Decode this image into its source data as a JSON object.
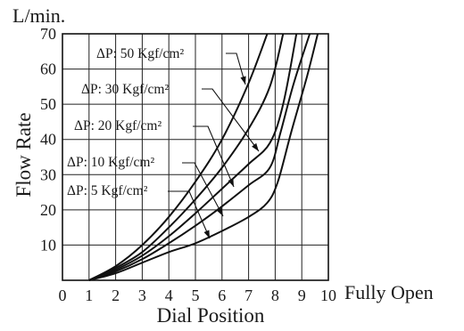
{
  "chart_data": {
    "type": "line",
    "y_unit": "L/min.",
    "ylabel": "Flow Rate",
    "xlabel": "Dial Position",
    "x_end_label": "Fully Open",
    "xlim": [
      0,
      10
    ],
    "ylim": [
      0,
      70
    ],
    "x_ticks": [
      "0",
      "1",
      "2",
      "3",
      "4",
      "5",
      "6",
      "7",
      "8",
      "9",
      "10"
    ],
    "y_ticks": [
      "10",
      "20",
      "30",
      "40",
      "50",
      "60",
      "70"
    ],
    "grid": true,
    "series": [
      {
        "name": "ΔP: 50 Kgf/cm²",
        "points": [
          [
            1,
            0
          ],
          [
            2,
            4
          ],
          [
            3,
            10
          ],
          [
            4,
            18
          ],
          [
            5,
            28
          ],
          [
            6,
            40
          ],
          [
            7,
            56
          ],
          [
            7.7,
            70
          ]
        ]
      },
      {
        "name": "ΔP: 30 Kgf/cm²",
        "points": [
          [
            1,
            0
          ],
          [
            2,
            3.5
          ],
          [
            3,
            8
          ],
          [
            4,
            15
          ],
          [
            5,
            23
          ],
          [
            6,
            32
          ],
          [
            7,
            43
          ],
          [
            7.8,
            55
          ],
          [
            8.3,
            70
          ]
        ]
      },
      {
        "name": "ΔP: 20 Kgf/cm²",
        "points": [
          [
            1,
            0
          ],
          [
            2,
            3
          ],
          [
            3,
            7
          ],
          [
            4,
            12.5
          ],
          [
            5,
            19
          ],
          [
            6,
            26
          ],
          [
            7,
            33
          ],
          [
            7.8,
            39
          ],
          [
            8.3,
            50
          ],
          [
            8.8,
            70
          ]
        ]
      },
      {
        "name": "ΔP: 10 Kgf/cm²",
        "points": [
          [
            1,
            0
          ],
          [
            2,
            2.5
          ],
          [
            3,
            6
          ],
          [
            4,
            10.5
          ],
          [
            5,
            15.5
          ],
          [
            6,
            21
          ],
          [
            7,
            27
          ],
          [
            7.8,
            32
          ],
          [
            8.2,
            42
          ],
          [
            8.7,
            56
          ],
          [
            9.3,
            70
          ]
        ]
      },
      {
        "name": "ΔP: 5 Kgf/cm²",
        "points": [
          [
            1,
            0
          ],
          [
            2,
            2
          ],
          [
            3,
            5
          ],
          [
            4,
            8
          ],
          [
            5,
            10.5
          ],
          [
            6,
            14
          ],
          [
            7,
            18
          ],
          [
            7.7,
            22
          ],
          [
            8.1,
            28
          ],
          [
            8.6,
            42
          ],
          [
            9.2,
            58
          ],
          [
            9.6,
            70
          ]
        ]
      }
    ]
  }
}
